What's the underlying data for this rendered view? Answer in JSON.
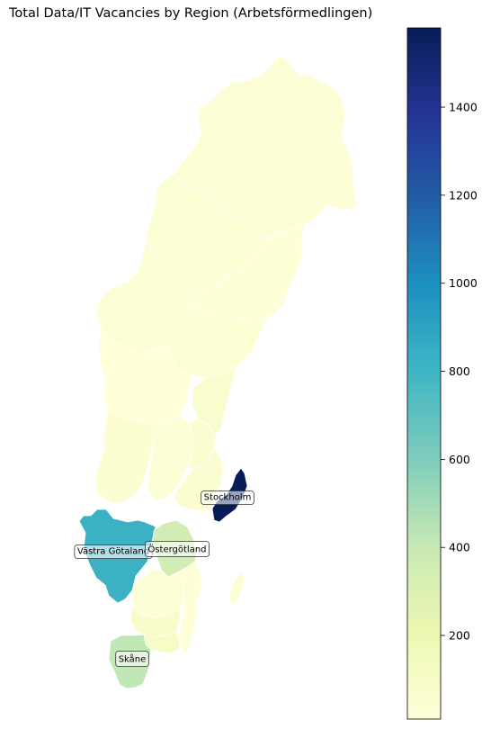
{
  "title": "Total Data/IT Vacancies by Region (Arbetsförmedlingen)",
  "colormap": {
    "name": "YlGnBu",
    "min": 10,
    "max": 1580,
    "ticks": [
      200,
      400,
      600,
      800,
      1000,
      1200,
      1400
    ],
    "stops": [
      "#ffffd9",
      "#edf8b1",
      "#c7e9b4",
      "#7fcdbb",
      "#41b6c4",
      "#1d91c0",
      "#225ea8",
      "#253494",
      "#081d58"
    ]
  },
  "regions": [
    {
      "label": "Stockholm",
      "value": 1580
    },
    {
      "label": "Västra Götaland",
      "value": 820
    },
    {
      "label": "Östergötland",
      "value": 350
    },
    {
      "label": "Skåne",
      "value": 420
    },
    {
      "value": 25
    },
    {
      "value": 40
    },
    {
      "value": 30
    },
    {
      "value": 20
    },
    {
      "value": 35
    },
    {
      "value": 15
    },
    {
      "value": 45
    },
    {
      "value": 30
    },
    {
      "value": 60
    },
    {
      "value": 70
    },
    {
      "value": 55
    },
    {
      "value": 25
    },
    {
      "value": 20
    },
    {
      "value": 90
    },
    {
      "value": 100
    },
    {
      "value": 40
    }
  ]
}
